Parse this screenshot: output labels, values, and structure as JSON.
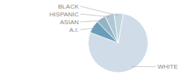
{
  "chart_data": {
    "type": "pie",
    "categories": [
      "WHITE",
      "A.I.",
      "ASIAN",
      "HISPANIC",
      "BLACK"
    ],
    "values": [
      78,
      7,
      5,
      5,
      5
    ],
    "colors": [
      "#d0dce8",
      "#6a9db8",
      "#93b4c5",
      "#aec7d4",
      "#c2d5de"
    ]
  }
}
